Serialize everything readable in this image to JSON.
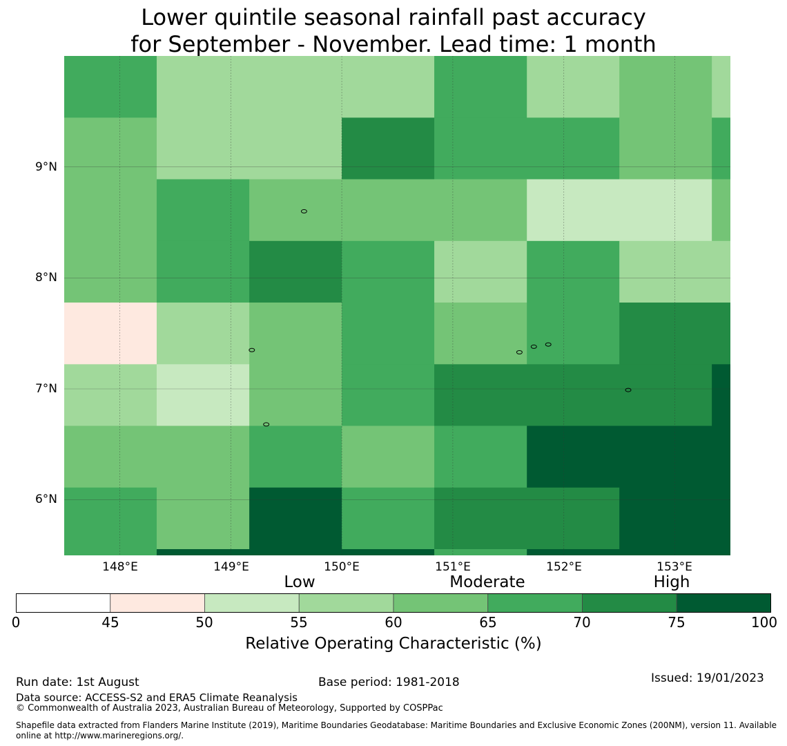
{
  "title": {
    "line1": "Lower quintile seasonal rainfall past accuracy",
    "line2": "for September - November. Lead time: 1 month"
  },
  "map": {
    "lon_range": [
      147.5,
      153.5
    ],
    "lat_range": [
      5.5,
      10.0
    ],
    "lon_ticks": [
      {
        "value": 148,
        "label": "148°E"
      },
      {
        "value": 149,
        "label": "149°E"
      },
      {
        "value": 150,
        "label": "150°E"
      },
      {
        "value": 151,
        "label": "151°E"
      },
      {
        "value": 152,
        "label": "152°E"
      },
      {
        "value": 153,
        "label": "153°E"
      }
    ],
    "lat_ticks": [
      {
        "value": 9,
        "label": "9°N"
      },
      {
        "value": 8,
        "label": "8°N"
      },
      {
        "value": 7,
        "label": "7°N"
      },
      {
        "value": 6,
        "label": "6°N"
      }
    ],
    "grid": true,
    "cells": [
      {
        "lon": [
          147.5,
          148.333
        ],
        "lat": [
          9.444,
          10.0
        ],
        "category": 6
      },
      {
        "lon": [
          148.333,
          150.0
        ],
        "lat": [
          9.444,
          10.0
        ],
        "category": 4
      },
      {
        "lon": [
          150.0,
          150.833
        ],
        "lat": [
          9.444,
          10.0
        ],
        "category": 4
      },
      {
        "lon": [
          150.833,
          151.667
        ],
        "lat": [
          9.444,
          10.0
        ],
        "category": 6
      },
      {
        "lon": [
          151.667,
          152.5
        ],
        "lat": [
          9.444,
          10.0
        ],
        "category": 4
      },
      {
        "lon": [
          152.5,
          153.333
        ],
        "lat": [
          9.444,
          10.0
        ],
        "category": 5
      },
      {
        "lon": [
          153.333,
          153.5
        ],
        "lat": [
          9.444,
          10.0
        ],
        "category": 4
      },
      {
        "lon": [
          147.5,
          148.333
        ],
        "lat": [
          8.889,
          9.444
        ],
        "category": 5
      },
      {
        "lon": [
          148.333,
          150.0
        ],
        "lat": [
          8.889,
          9.444
        ],
        "category": 4
      },
      {
        "lon": [
          150.0,
          150.833
        ],
        "lat": [
          8.889,
          9.444
        ],
        "category": 7
      },
      {
        "lon": [
          150.833,
          152.5
        ],
        "lat": [
          8.889,
          9.444
        ],
        "category": 6
      },
      {
        "lon": [
          152.5,
          153.333
        ],
        "lat": [
          8.889,
          9.444
        ],
        "category": 5
      },
      {
        "lon": [
          153.333,
          153.5
        ],
        "lat": [
          8.889,
          9.444
        ],
        "category": 6
      },
      {
        "lon": [
          147.5,
          148.333
        ],
        "lat": [
          8.333,
          8.889
        ],
        "category": 5
      },
      {
        "lon": [
          148.333,
          149.167
        ],
        "lat": [
          8.333,
          8.889
        ],
        "category": 6
      },
      {
        "lon": [
          149.167,
          150.0
        ],
        "lat": [
          8.333,
          8.889
        ],
        "category": 5
      },
      {
        "lon": [
          150.0,
          151.667
        ],
        "lat": [
          8.333,
          8.889
        ],
        "category": 5
      },
      {
        "lon": [
          151.667,
          153.333
        ],
        "lat": [
          8.333,
          8.889
        ],
        "category": 3
      },
      {
        "lon": [
          153.333,
          153.5
        ],
        "lat": [
          8.333,
          8.889
        ],
        "category": 5
      },
      {
        "lon": [
          147.5,
          148.333
        ],
        "lat": [
          7.778,
          8.333
        ],
        "category": 5
      },
      {
        "lon": [
          148.333,
          149.167
        ],
        "lat": [
          7.778,
          8.333
        ],
        "category": 6
      },
      {
        "lon": [
          149.167,
          150.0
        ],
        "lat": [
          7.778,
          8.333
        ],
        "category": 7
      },
      {
        "lon": [
          150.0,
          150.833
        ],
        "lat": [
          7.778,
          8.333
        ],
        "category": 6
      },
      {
        "lon": [
          150.833,
          151.667
        ],
        "lat": [
          7.778,
          8.333
        ],
        "category": 4
      },
      {
        "lon": [
          151.667,
          152.5
        ],
        "lat": [
          7.778,
          8.333
        ],
        "category": 6
      },
      {
        "lon": [
          152.5,
          153.5
        ],
        "lat": [
          7.778,
          8.333
        ],
        "category": 4
      },
      {
        "lon": [
          147.5,
          148.333
        ],
        "lat": [
          7.222,
          7.778
        ],
        "category": 2
      },
      {
        "lon": [
          148.333,
          149.167
        ],
        "lat": [
          7.222,
          7.778
        ],
        "category": 4
      },
      {
        "lon": [
          149.167,
          150.0
        ],
        "lat": [
          7.222,
          7.778
        ],
        "category": 5
      },
      {
        "lon": [
          150.0,
          150.833
        ],
        "lat": [
          7.222,
          7.778
        ],
        "category": 6
      },
      {
        "lon": [
          150.833,
          151.667
        ],
        "lat": [
          7.222,
          7.778
        ],
        "category": 5
      },
      {
        "lon": [
          151.667,
          152.5
        ],
        "lat": [
          7.222,
          7.778
        ],
        "category": 6
      },
      {
        "lon": [
          152.5,
          153.5
        ],
        "lat": [
          7.222,
          7.778
        ],
        "category": 7
      },
      {
        "lon": [
          147.5,
          148.333
        ],
        "lat": [
          6.667,
          7.222
        ],
        "category": 4
      },
      {
        "lon": [
          148.333,
          149.167
        ],
        "lat": [
          6.667,
          7.222
        ],
        "category": 3
      },
      {
        "lon": [
          149.167,
          150.0
        ],
        "lat": [
          6.667,
          7.222
        ],
        "category": 5
      },
      {
        "lon": [
          150.0,
          150.833
        ],
        "lat": [
          6.667,
          7.222
        ],
        "category": 6
      },
      {
        "lon": [
          150.833,
          153.333
        ],
        "lat": [
          6.667,
          7.222
        ],
        "category": 7
      },
      {
        "lon": [
          153.333,
          153.5
        ],
        "lat": [
          6.667,
          7.222
        ],
        "category": 8
      },
      {
        "lon": [
          147.5,
          149.167
        ],
        "lat": [
          6.111,
          6.667
        ],
        "category": 5
      },
      {
        "lon": [
          149.167,
          150.0
        ],
        "lat": [
          6.111,
          6.667
        ],
        "category": 6
      },
      {
        "lon": [
          150.0,
          150.833
        ],
        "lat": [
          6.111,
          6.667
        ],
        "category": 5
      },
      {
        "lon": [
          150.833,
          151.667
        ],
        "lat": [
          6.111,
          6.667
        ],
        "category": 6
      },
      {
        "lon": [
          151.667,
          153.5
        ],
        "lat": [
          6.111,
          6.667
        ],
        "category": 8
      },
      {
        "lon": [
          147.5,
          148.333
        ],
        "lat": [
          5.556,
          6.111
        ],
        "category": 6
      },
      {
        "lon": [
          148.333,
          149.167
        ],
        "lat": [
          5.556,
          6.111
        ],
        "category": 5
      },
      {
        "lon": [
          149.167,
          150.0
        ],
        "lat": [
          5.556,
          6.111
        ],
        "category": 8
      },
      {
        "lon": [
          150.0,
          150.833
        ],
        "lat": [
          5.556,
          6.111
        ],
        "category": 6
      },
      {
        "lon": [
          150.833,
          152.5
        ],
        "lat": [
          5.556,
          6.111
        ],
        "category": 7
      },
      {
        "lon": [
          152.5,
          153.5
        ],
        "lat": [
          5.556,
          6.111
        ],
        "category": 8
      },
      {
        "lon": [
          147.5,
          148.333
        ],
        "lat": [
          5.5,
          5.556
        ],
        "category": 6
      },
      {
        "lon": [
          148.333,
          150.0
        ],
        "lat": [
          5.5,
          5.556
        ],
        "category": 8
      },
      {
        "lon": [
          150.0,
          150.833
        ],
        "lat": [
          5.5,
          5.556
        ],
        "category": 8
      },
      {
        "lon": [
          150.833,
          151.667
        ],
        "lat": [
          5.5,
          5.556
        ],
        "category": 6
      },
      {
        "lon": [
          151.667,
          153.5
        ],
        "lat": [
          5.5,
          5.556
        ],
        "category": 8
      }
    ],
    "islands": [
      {
        "lon": 149.66,
        "lat": 8.6
      },
      {
        "lon": 149.19,
        "lat": 7.35
      },
      {
        "lon": 149.32,
        "lat": 6.68
      },
      {
        "lon": 151.6,
        "lat": 7.33
      },
      {
        "lon": 151.73,
        "lat": 7.38
      },
      {
        "lon": 151.86,
        "lat": 7.4
      },
      {
        "lon": 152.58,
        "lat": 6.99
      }
    ]
  },
  "legend": {
    "categories": [
      {
        "label": "Low",
        "center": 55
      },
      {
        "label": "Moderate",
        "center": 67.5
      },
      {
        "label": "High",
        "center": 77.5
      }
    ],
    "ticks": [
      "0",
      "45",
      "50",
      "55",
      "60",
      "65",
      "70",
      "75",
      "100"
    ],
    "colors": [
      "#ffffff",
      "#fee9e0",
      "#c7e9c0",
      "#a1d99b",
      "#74c476",
      "#41ab5d",
      "#238b45",
      "#005a32"
    ],
    "title": "Relative Operating Characteristic (%)"
  },
  "footer": {
    "run_date": "Run date: 1st August",
    "base_period": "Base period: 1981-2018",
    "issued": "Issued: 19/01/2023",
    "data_source": "Data source: ACCESS-S2 and ERA5 Climate Reanalysis",
    "copyright": "© Commonwealth of Australia 2023, Australian Bureau of Meteorology, Supported by COSPPac",
    "shapefile_line1": "Shapefile data extracted from Flanders Marine Institute (2019), Maritime Boundaries Geodatabase: Maritime Boundaries and Exclusive Economic Zones (200NM), version 11. Available",
    "shapefile_line2": "online at http://www.marineregions.org/."
  }
}
